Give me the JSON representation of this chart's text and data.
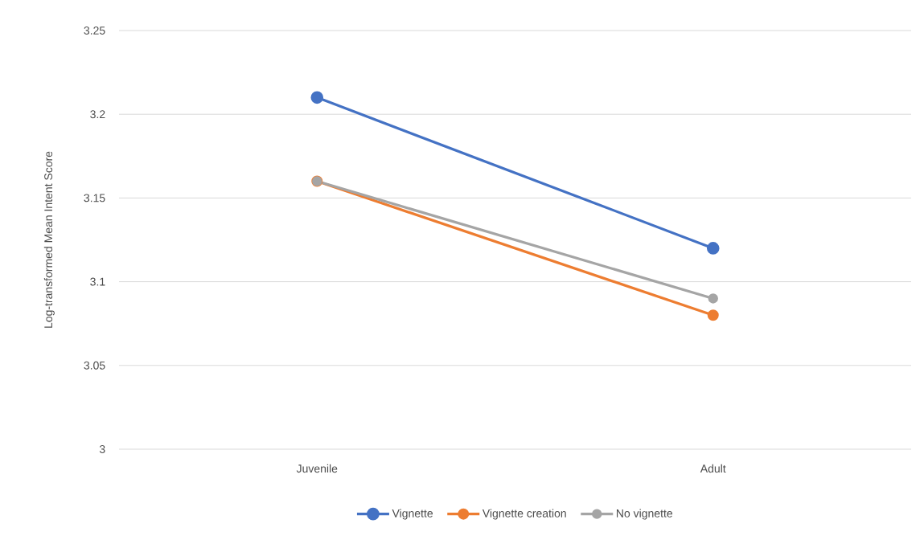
{
  "chart_data": {
    "type": "line",
    "ylabel": "Log-transformed Mean Intent Score",
    "categories": [
      "Juvenile",
      "Adult"
    ],
    "series": [
      {
        "name": "Vignette",
        "color": "#4472c4",
        "values": [
          3.21,
          3.12
        ]
      },
      {
        "name": "Vignette creation",
        "color": "#ed7d31",
        "values": [
          3.16,
          3.08
        ]
      },
      {
        "name": "No vignette",
        "color": "#a5a5a5",
        "values": [
          3.16,
          3.09
        ]
      }
    ],
    "ylim": [
      3,
      3.25
    ],
    "yticks": [
      3,
      3.05,
      3.1,
      3.15,
      3.2,
      3.25
    ],
    "grid": "y",
    "legend": "bottom",
    "marker": "circle",
    "line_style": "solid"
  }
}
